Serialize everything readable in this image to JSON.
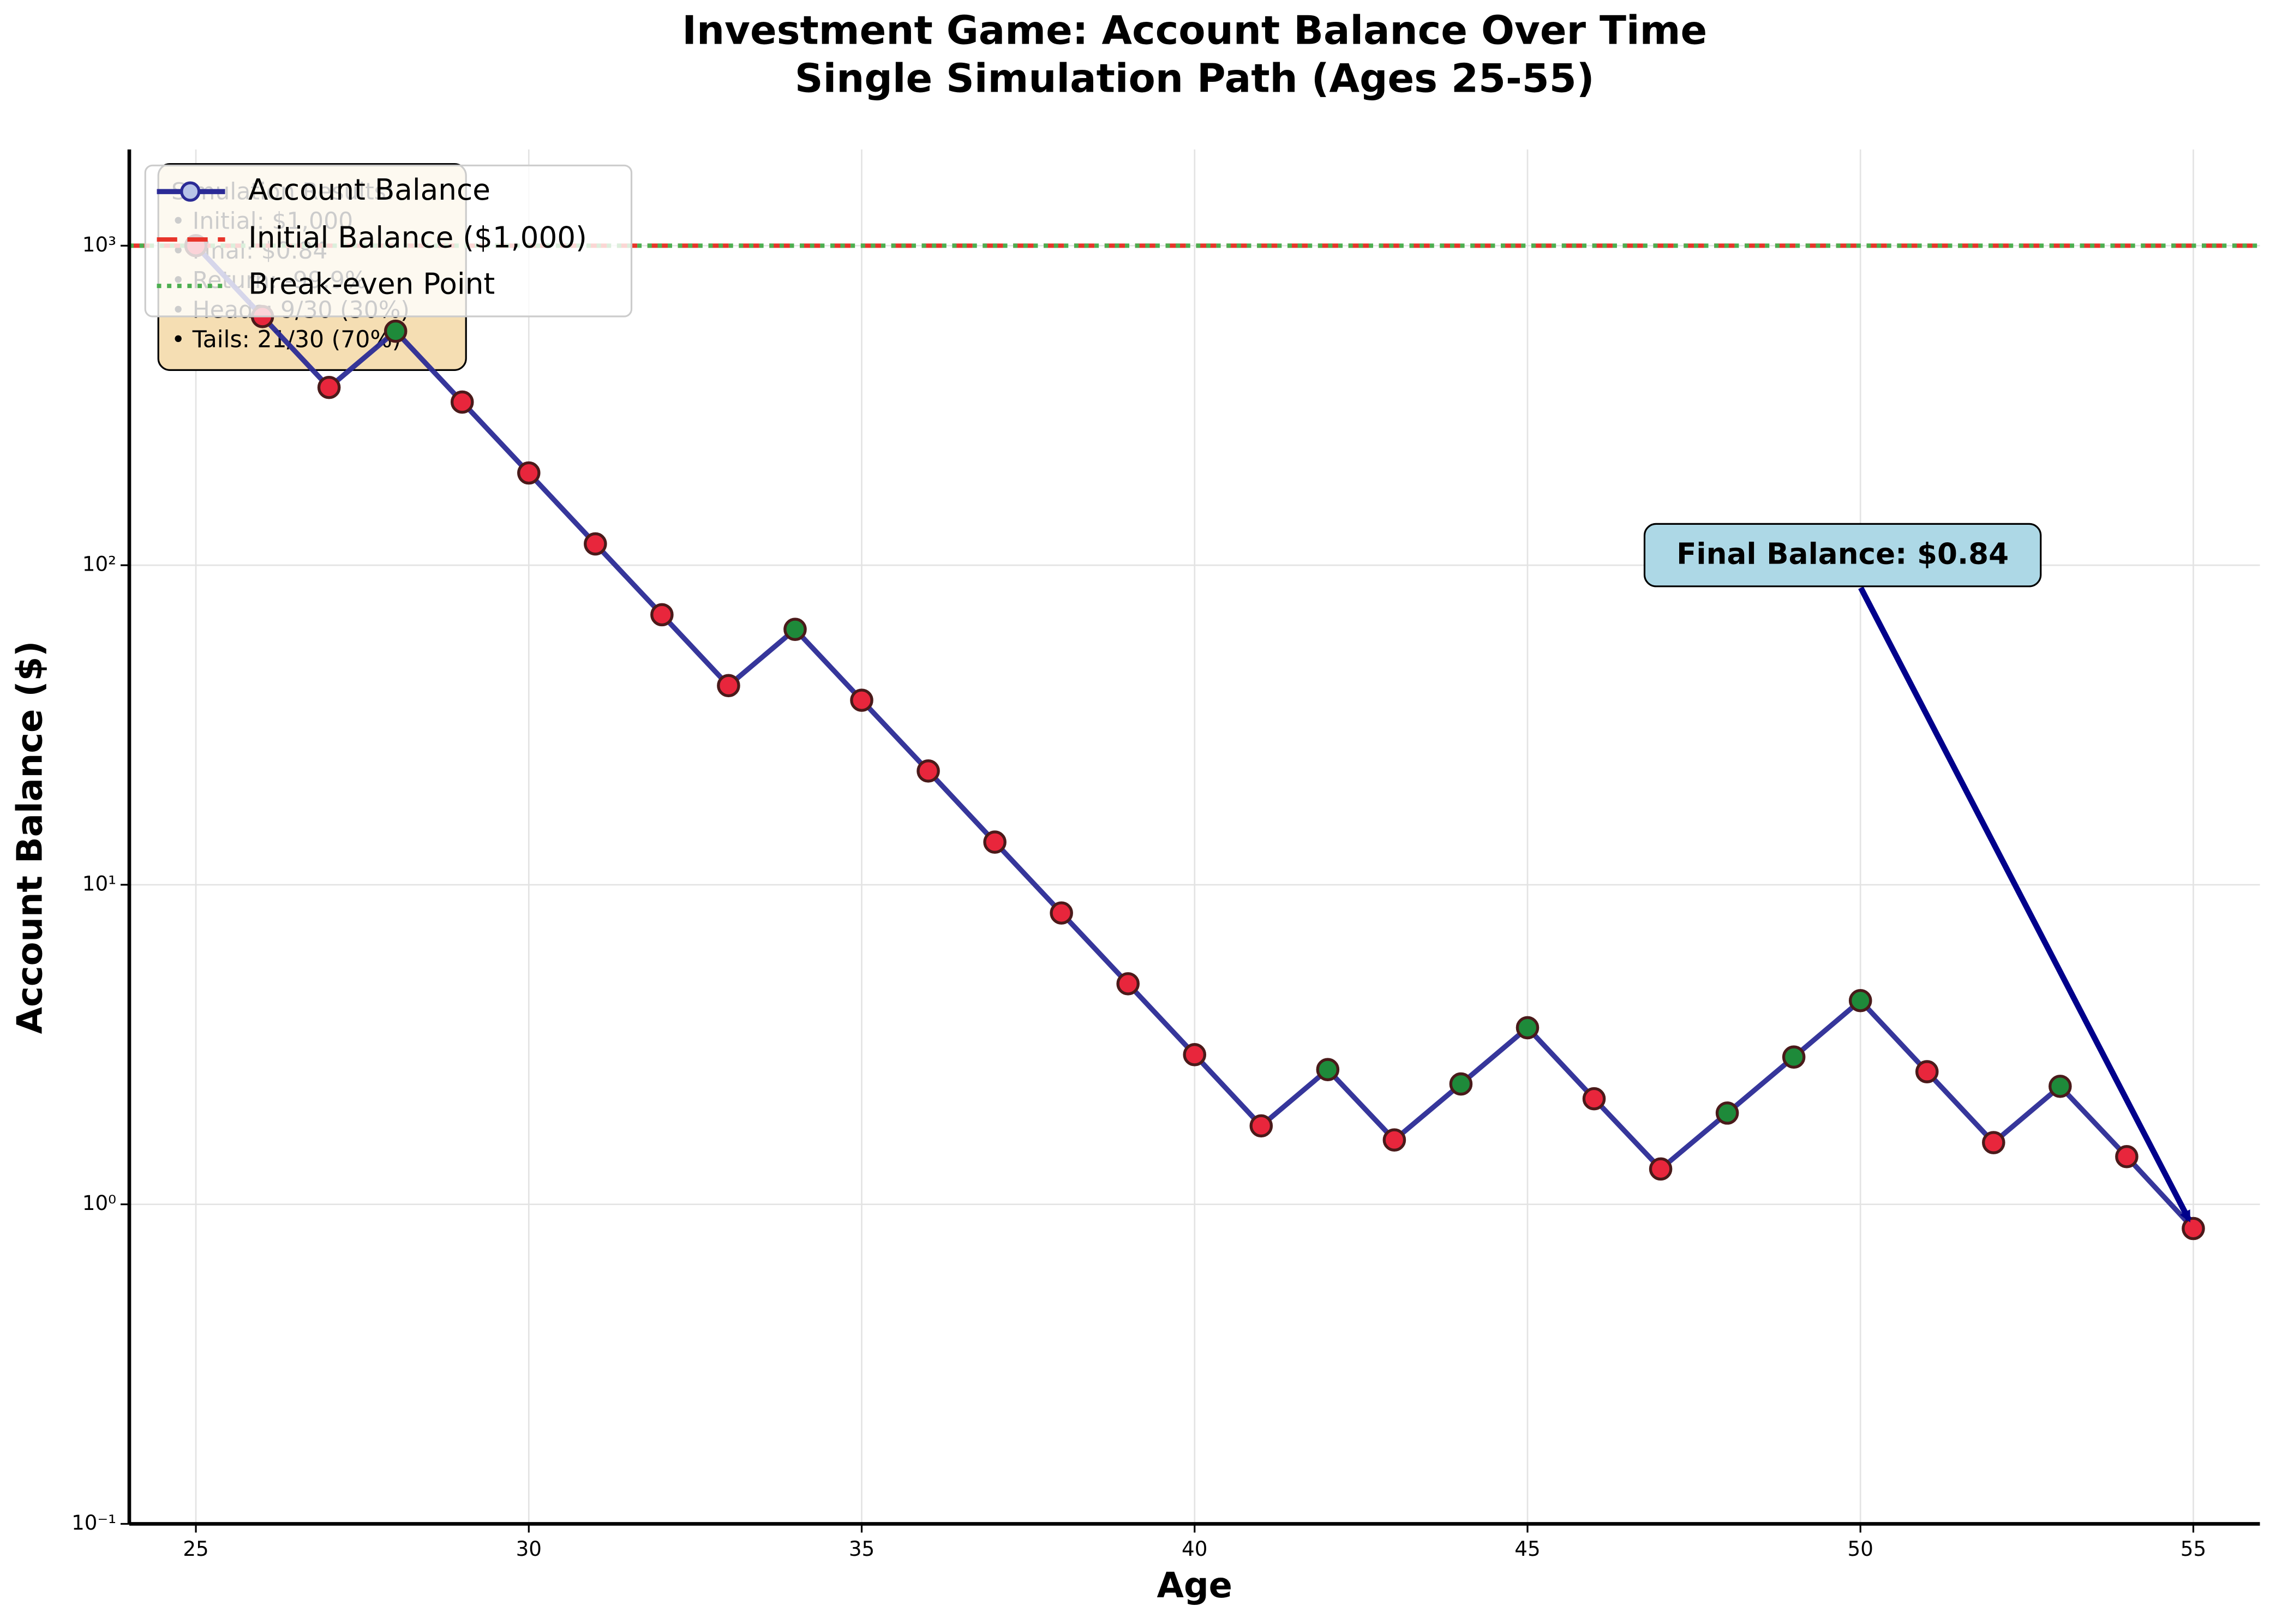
{
  "chart_data": {
    "type": "line",
    "title": "Investment Game: Account Balance Over Time",
    "subtitle": "Single Simulation Path (Ages 25-55)",
    "x_label": "Age",
    "y_label": "Account Balance ($)",
    "x": [
      25,
      26,
      27,
      28,
      29,
      30,
      31,
      32,
      33,
      34,
      35,
      36,
      37,
      38,
      39,
      40,
      41,
      42,
      43,
      44,
      45,
      46,
      47,
      48,
      49,
      50,
      51,
      52,
      53,
      54,
      55
    ],
    "series": [
      {
        "name": "Account Balance",
        "color": "#2b2b96",
        "values": [
          1000,
          600,
          360,
          540,
          324,
          194.4,
          116.6,
          70.0,
          42.0,
          63.0,
          37.8,
          22.7,
          13.6,
          8.16,
          4.9,
          2.94,
          1.76,
          2.64,
          1.59,
          2.38,
          3.57,
          2.14,
          1.29,
          1.93,
          2.89,
          4.34,
          2.6,
          1.56,
          2.34,
          1.41,
          0.84
        ],
        "point_colors": [
          "#e8263c",
          "#e8263c",
          "#e8263c",
          "#1e8a3a",
          "#e8263c",
          "#e8263c",
          "#e8263c",
          "#e8263c",
          "#e8263c",
          "#1e8a3a",
          "#e8263c",
          "#e8263c",
          "#e8263c",
          "#e8263c",
          "#e8263c",
          "#e8263c",
          "#e8263c",
          "#1e8a3a",
          "#e8263c",
          "#1e8a3a",
          "#1e8a3a",
          "#e8263c",
          "#e8263c",
          "#1e8a3a",
          "#1e8a3a",
          "#1e8a3a",
          "#e8263c",
          "#e8263c",
          "#1e8a3a",
          "#e8263c",
          "#e8263c"
        ]
      }
    ],
    "reference_lines": [
      {
        "name": "Initial Balance ($1,000)",
        "value": 1000,
        "color": "#e8342a",
        "style": "dashed"
      },
      {
        "name": "Break-even Point",
        "value": 1000,
        "color": "#4caf50",
        "style": "dotted"
      }
    ],
    "xlim": [
      24,
      56
    ],
    "xticks": [
      25,
      30,
      35,
      40,
      45,
      50,
      55
    ],
    "ylim": [
      0.1,
      2000
    ],
    "yticks": [
      {
        "value": 0.1,
        "label": "10⁻¹"
      },
      {
        "value": 1,
        "label": "10⁰"
      },
      {
        "value": 10,
        "label": "10¹"
      },
      {
        "value": 100,
        "label": "10²"
      },
      {
        "value": 1000,
        "label": "10³"
      }
    ],
    "log_y": true,
    "grid": true,
    "legend": "upper left",
    "annotation": {
      "text": "Final Balance: $0.84",
      "color": "#00008b",
      "box_color": "#add8e6"
    },
    "stats_box": {
      "color": "#f5deb3",
      "lines": [
        "Simulation Results:",
        "• Initial: $1,000",
        "• Final: $0.84",
        "• Return: -99.9%",
        "• Heads: 9/30 (30%)",
        "• Tails: 21/30 (70%)"
      ]
    }
  }
}
